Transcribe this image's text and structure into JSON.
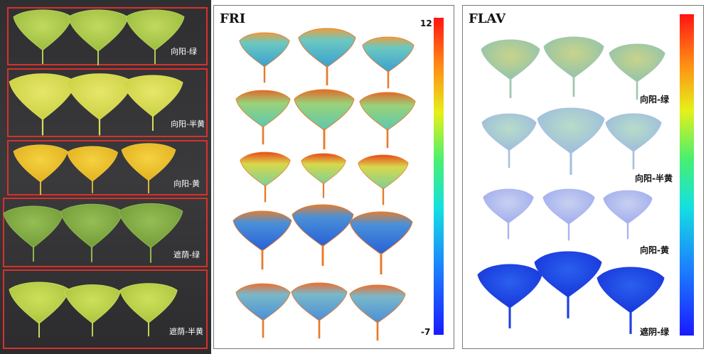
{
  "photo_panel": {
    "rows": [
      {
        "label": "向阳-绿"
      },
      {
        "label": "向阳-半黄"
      },
      {
        "label": "向阳-黄"
      },
      {
        "label": "遮荫-绿"
      },
      {
        "label": "遮荫-半黄"
      }
    ]
  },
  "fri_panel": {
    "title": "FRI",
    "colorbar_max": "12",
    "colorbar_min": "-7"
  },
  "flav_panel": {
    "title": "FLAV",
    "row_labels": [
      {
        "label": "向阳-绿"
      },
      {
        "label": "向阳-半黄"
      },
      {
        "label": "向阳-黄"
      },
      {
        "label": "遮阴-绿"
      }
    ]
  },
  "colors": {
    "box_red": "#d9302b",
    "photo_bg": "#333335",
    "leaf_green": "#a9c84a",
    "leaf_half_yellow": "#d4dc52",
    "leaf_yellow": "#e9c02a",
    "leaf_shade_green": "#7faa3e",
    "leaf_shade_half": "#bcd24a"
  }
}
